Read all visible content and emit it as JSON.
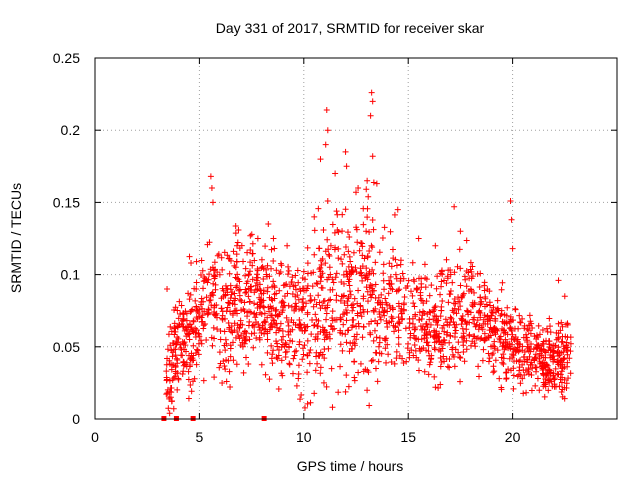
{
  "chart_data": {
    "type": "scatter",
    "title": "Day 331 of 2017, SRMTID for receiver skar",
    "xlabel": "GPS time / hours",
    "ylabel": "SRMTID / TECUs",
    "xlim": [
      0,
      25
    ],
    "ylim": [
      0,
      0.25
    ],
    "x_ticks": [
      0,
      5,
      10,
      15,
      20
    ],
    "x_tick_labels": [
      "0",
      "5",
      "10",
      "15",
      "20"
    ],
    "y_ticks": [
      0,
      0.05,
      0.1,
      0.15,
      0.2,
      0.25
    ],
    "y_tick_labels": [
      "0",
      "0.05",
      "0.1",
      "0.15",
      "0.2",
      "0.25"
    ],
    "grid": true,
    "marker": "plus",
    "color": "#ff0000",
    "zero_markers_x": [
      3.3,
      3.9,
      4.7,
      8.1
    ],
    "envelope": {
      "hours": [
        3.4,
        4.0,
        4.5,
        5.0,
        5.5,
        6.0,
        7.0,
        8.0,
        9.0,
        10.0,
        11.0,
        11.5,
        12.0,
        12.5,
        13.0,
        13.5,
        14.0,
        15.0,
        16.0,
        17.0,
        18.0,
        19.0,
        20.0,
        21.0,
        22.0,
        22.8
      ],
      "mean": [
        0.025,
        0.05,
        0.055,
        0.07,
        0.09,
        0.07,
        0.08,
        0.08,
        0.07,
        0.07,
        0.085,
        0.09,
        0.085,
        0.08,
        0.09,
        0.09,
        0.08,
        0.075,
        0.065,
        0.07,
        0.075,
        0.06,
        0.05,
        0.045,
        0.04,
        0.045
      ],
      "spread": [
        0.02,
        0.03,
        0.035,
        0.035,
        0.045,
        0.04,
        0.035,
        0.035,
        0.035,
        0.04,
        0.05,
        0.05,
        0.045,
        0.045,
        0.055,
        0.055,
        0.04,
        0.035,
        0.03,
        0.035,
        0.03,
        0.025,
        0.025,
        0.022,
        0.02,
        0.022
      ]
    },
    "peaks": [
      {
        "x": 3.45,
        "y": 0.09
      },
      {
        "x": 4.6,
        "y": 0.108
      },
      {
        "x": 5.55,
        "y": 0.168
      },
      {
        "x": 5.6,
        "y": 0.16
      },
      {
        "x": 5.65,
        "y": 0.15
      },
      {
        "x": 8.3,
        "y": 0.135
      },
      {
        "x": 9.2,
        "y": 0.12
      },
      {
        "x": 10.8,
        "y": 0.18
      },
      {
        "x": 11.1,
        "y": 0.214
      },
      {
        "x": 11.15,
        "y": 0.2
      },
      {
        "x": 11.05,
        "y": 0.19
      },
      {
        "x": 11.5,
        "y": 0.17
      },
      {
        "x": 12.0,
        "y": 0.185
      },
      {
        "x": 12.05,
        "y": 0.175
      },
      {
        "x": 12.6,
        "y": 0.16
      },
      {
        "x": 13.25,
        "y": 0.226
      },
      {
        "x": 13.3,
        "y": 0.22
      },
      {
        "x": 13.2,
        "y": 0.21
      },
      {
        "x": 13.3,
        "y": 0.182
      },
      {
        "x": 13.5,
        "y": 0.163
      },
      {
        "x": 14.5,
        "y": 0.145
      },
      {
        "x": 17.2,
        "y": 0.147
      },
      {
        "x": 17.5,
        "y": 0.13
      },
      {
        "x": 19.9,
        "y": 0.151
      },
      {
        "x": 19.95,
        "y": 0.138
      },
      {
        "x": 20.0,
        "y": 0.118
      },
      {
        "x": 22.2,
        "y": 0.096
      },
      {
        "x": 22.5,
        "y": 0.085
      },
      {
        "x": 10.5,
        "y": 0.14
      },
      {
        "x": 6.8,
        "y": 0.12
      },
      {
        "x": 7.8,
        "y": 0.125
      },
      {
        "x": 15.5,
        "y": 0.125
      },
      {
        "x": 16.3,
        "y": 0.12
      }
    ]
  }
}
